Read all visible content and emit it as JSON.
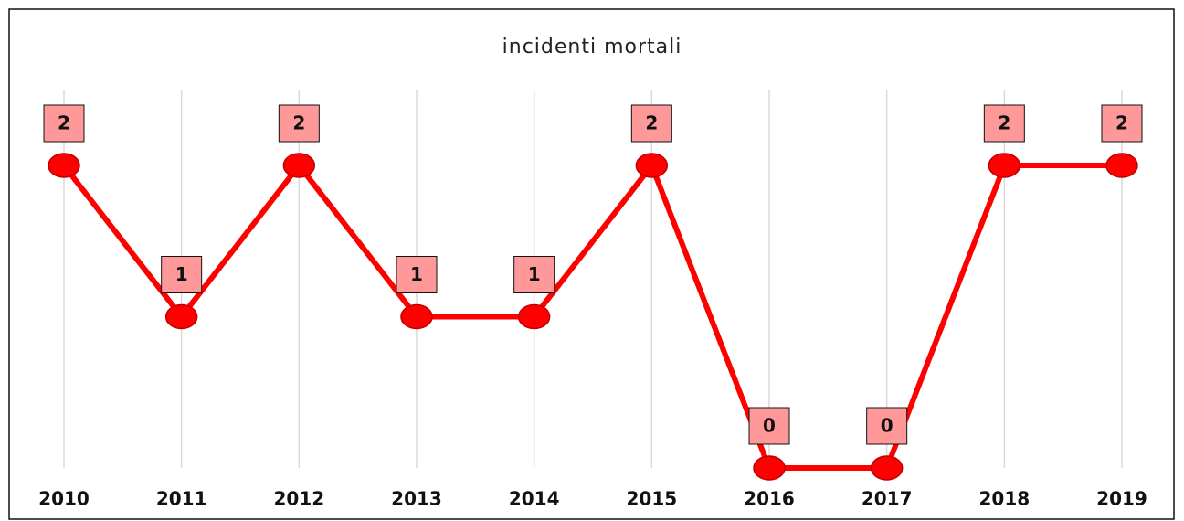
{
  "chart_data": {
    "type": "line",
    "title": "incidenti mortali",
    "categories": [
      "2010",
      "2011",
      "2012",
      "2013",
      "2014",
      "2015",
      "2016",
      "2017",
      "2018",
      "2019"
    ],
    "values": [
      2,
      1,
      2,
      1,
      1,
      2,
      0,
      0,
      2,
      2
    ],
    "color": "#ff0000",
    "label_color": "#ff9999",
    "ylim": [
      0,
      2
    ],
    "grid": true
  }
}
